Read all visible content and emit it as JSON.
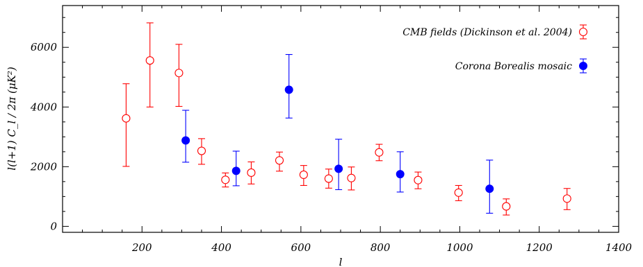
{
  "chart_data": {
    "type": "scatter",
    "title": "",
    "xlabel": "l",
    "ylabel": "l(l+1) C_l / 2π (μK²)",
    "xlim": [
      0,
      1400
    ],
    "ylim": [
      -200,
      7400
    ],
    "x_ticks": [
      200,
      400,
      600,
      800,
      1000,
      1200,
      1400
    ],
    "x_tick_labels": [
      "200",
      "400",
      "600",
      "800",
      "1000",
      "1200",
      "1400"
    ],
    "y_ticks": [
      0,
      2000,
      4000,
      6000
    ],
    "y_tick_labels": [
      "0",
      "2000",
      "4000",
      "6000"
    ],
    "grid": false,
    "legend_position": "top-right",
    "series": [
      {
        "name": "CMB fields (Dickinson et al. 2004)",
        "marker": "open-circle",
        "color": "#ff0000",
        "points": [
          {
            "x": 160,
            "y": 3620,
            "err_low": 2010,
            "err_high": 4780
          },
          {
            "x": 220,
            "y": 5560,
            "err_low": 4000,
            "err_high": 6820
          },
          {
            "x": 293,
            "y": 5140,
            "err_low": 4020,
            "err_high": 6100
          },
          {
            "x": 350,
            "y": 2530,
            "err_low": 2080,
            "err_high": 2940
          },
          {
            "x": 410,
            "y": 1560,
            "err_low": 1320,
            "err_high": 1790
          },
          {
            "x": 475,
            "y": 1800,
            "err_low": 1420,
            "err_high": 2160
          },
          {
            "x": 546,
            "y": 2210,
            "err_low": 1850,
            "err_high": 2490
          },
          {
            "x": 607,
            "y": 1730,
            "err_low": 1370,
            "err_high": 2040
          },
          {
            "x": 670,
            "y": 1600,
            "err_low": 1280,
            "err_high": 1920
          },
          {
            "x": 727,
            "y": 1620,
            "err_low": 1220,
            "err_high": 1990
          },
          {
            "x": 797,
            "y": 2480,
            "err_low": 2200,
            "err_high": 2750
          },
          {
            "x": 895,
            "y": 1550,
            "err_low": 1260,
            "err_high": 1820
          },
          {
            "x": 997,
            "y": 1130,
            "err_low": 860,
            "err_high": 1370
          },
          {
            "x": 1117,
            "y": 670,
            "err_low": 380,
            "err_high": 920
          },
          {
            "x": 1270,
            "y": 930,
            "err_low": 560,
            "err_high": 1270
          }
        ]
      },
      {
        "name": "Corona Borealis mosaic",
        "marker": "filled-circle",
        "color": "#0000ff",
        "points": [
          {
            "x": 310,
            "y": 2880,
            "err_low": 2150,
            "err_high": 3890
          },
          {
            "x": 437,
            "y": 1860,
            "err_low": 1360,
            "err_high": 2520
          },
          {
            "x": 570,
            "y": 4580,
            "err_low": 3630,
            "err_high": 5760
          },
          {
            "x": 695,
            "y": 1930,
            "err_low": 1230,
            "err_high": 2920
          },
          {
            "x": 850,
            "y": 1750,
            "err_low": 1150,
            "err_high": 2500
          },
          {
            "x": 1075,
            "y": 1260,
            "err_low": 440,
            "err_high": 2220
          }
        ]
      }
    ]
  }
}
